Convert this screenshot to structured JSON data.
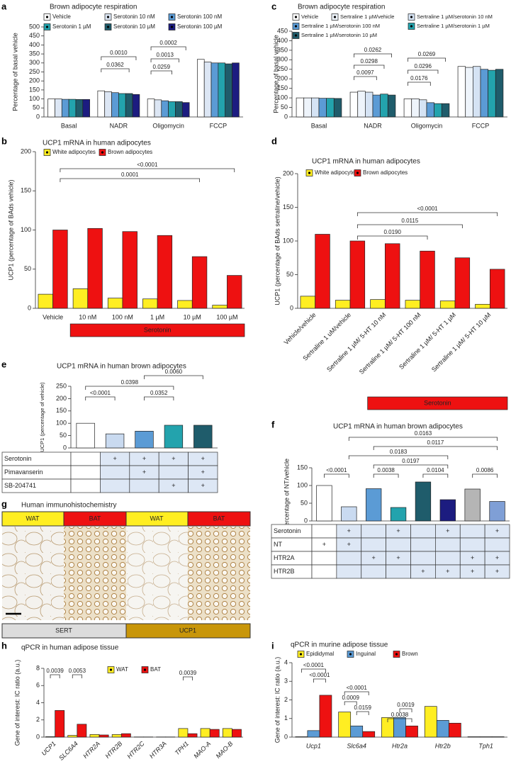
{
  "chart_data": [
    {
      "panel": "a",
      "type": "bar",
      "title": "Brown adipocyte respiration",
      "y_label": "Percentage of basal vehicle",
      "categories": [
        "Basal",
        "NADR",
        "Oligomycin",
        "FCCP"
      ],
      "series": [
        {
          "name": "Vehicle",
          "color": "#ffffff",
          "values": [
            100,
            145,
            100,
            320
          ]
        },
        {
          "name": "Serotonin 10 nM",
          "color": "#dce6f4",
          "values": [
            100,
            140,
            95,
            305
          ]
        },
        {
          "name": "Serotonin 100 nM",
          "color": "#5b9bd5",
          "values": [
            98,
            135,
            90,
            300
          ]
        },
        {
          "name": "Serotonin 1 µM",
          "color": "#23a3ad",
          "values": [
            98,
            130,
            85,
            300
          ]
        },
        {
          "name": "Serotonin 10 µM",
          "color": "#1f5c6b",
          "values": [
            97,
            130,
            85,
            295
          ]
        },
        {
          "name": "Serotonin 100 µM",
          "color": "#1c1c80",
          "values": [
            97,
            125,
            80,
            300
          ]
        }
      ],
      "ylim": [
        0,
        500
      ],
      "yticks": [
        0,
        50,
        100,
        150,
        200,
        250,
        300,
        350,
        400,
        450,
        500
      ],
      "annotations": [
        "0.0010",
        "0.0362",
        "0.0002",
        "0.0013",
        "0.0259"
      ]
    },
    {
      "panel": "c",
      "type": "bar",
      "title": "Brown adipocyte respiration",
      "y_label": "Percentage of basal vehicle",
      "categories": [
        "Basal",
        "NADR",
        "Oligomycin",
        "FCCP"
      ],
      "series": [
        {
          "name": "Vehicle",
          "color": "#ffffff",
          "values": [
            100,
            130,
            95,
            265
          ]
        },
        {
          "name": "Sertraline 1 µM/vehicle",
          "color": "#eef4fb",
          "values": [
            100,
            135,
            95,
            260
          ]
        },
        {
          "name": "Sertraline 1 µM/serotonin 10 nM",
          "color": "#d5e3f4",
          "values": [
            100,
            130,
            90,
            265
          ]
        },
        {
          "name": "Sertraline 1 µM/serotonin 100 nM",
          "color": "#5b9bd5",
          "values": [
            98,
            115,
            75,
            250
          ]
        },
        {
          "name": "Sertraline 1 µM/serotonin 1 µM",
          "color": "#23a3ad",
          "values": [
            98,
            120,
            70,
            245
          ]
        },
        {
          "name": "Sertraline 1 µM/serotonin 10 µM",
          "color": "#1f5c6b",
          "values": [
            97,
            115,
            70,
            250
          ]
        }
      ],
      "ylim": [
        0,
        450
      ],
      "yticks": [
        0,
        50,
        100,
        150,
        200,
        250,
        300,
        350,
        400,
        450
      ],
      "annotations": [
        "0.0262",
        "0.0298",
        "0.0097",
        "0.0269",
        "0.0296",
        "0.0176"
      ]
    },
    {
      "panel": "b",
      "type": "bar",
      "title": "UCP1 mRNA in human adipocytes",
      "y_label": "UCP1 (percentage of BAds vehicle)",
      "categories": [
        "Vehicle",
        "10 nM",
        "100 nM",
        "1 µM",
        "10 µM",
        "100 µM"
      ],
      "series": [
        {
          "name": "White adipocytes",
          "color": "#ffee22",
          "values": [
            18,
            25,
            13,
            12,
            10,
            4
          ]
        },
        {
          "name": "Brown adipocytes",
          "color": "#ee1111",
          "values": [
            100,
            102,
            98,
            93,
            66,
            42
          ]
        }
      ],
      "ylim": [
        0,
        200
      ],
      "yticks": [
        0,
        50,
        100,
        150,
        200
      ],
      "annotations": [
        "0.0001",
        "<0.0001"
      ],
      "banner": "Serotonin"
    },
    {
      "panel": "d",
      "type": "bar",
      "title": "UCP1 mRNA in human adipocytes",
      "y_label": "UCP1 (percentage of BAds sertraline/vehicle)",
      "categories": [
        "Vehicle/vehicle",
        "Sertraline 1 uM/vehicle",
        "Sertraline 1 µM/ 5-HT 10 nM",
        "Sertraline 1 µM/ 5-HT 100 nM",
        "Sertraline 1 µM/ 5-HT 1 µM",
        "Sertraline 1 µM/ 5-HT 10 µM"
      ],
      "series": [
        {
          "name": "White adipocytes",
          "color": "#ffee22",
          "values": [
            18,
            12,
            13,
            12,
            11,
            6
          ]
        },
        {
          "name": "Brown adipocytes",
          "color": "#ee1111",
          "values": [
            110,
            100,
            96,
            85,
            75,
            58
          ]
        }
      ],
      "ylim": [
        0,
        200
      ],
      "yticks": [
        0,
        50,
        100,
        150,
        200
      ],
      "annotations": [
        "<0.0001",
        "0.0115",
        "0.0190"
      ],
      "banner": "Serotonin"
    },
    {
      "panel": "e",
      "type": "bar",
      "title": "UCP1 mRNA in human brown adipocytes",
      "y_label": "UCP1 (percentage of vehicle)",
      "values": [
        100,
        57,
        68,
        92,
        92
      ],
      "colors": [
        "#ffffff",
        "#c9daf0",
        "#5b9bd5",
        "#23a3ad",
        "#1f5c6b"
      ],
      "ylim": [
        0,
        250
      ],
      "yticks": [
        0,
        50,
        100,
        150,
        200,
        250
      ],
      "annotations": [
        "<0.0001",
        "0.0398",
        "0.0060",
        "0.0352"
      ],
      "table": {
        "rows": [
          {
            "label": "Serotonin",
            "cells": [
              null,
              "+",
              "+",
              "+",
              "+"
            ]
          },
          {
            "label": "Pimavanserin",
            "cells": [
              null,
              null,
              "+",
              null,
              "+"
            ]
          },
          {
            "label": "SB-204741",
            "cells": [
              null,
              null,
              null,
              "+",
              "+"
            ]
          }
        ]
      }
    },
    {
      "panel": "f",
      "type": "bar",
      "title": "UCP1 mRNA in human brown adipocytes",
      "y_label": "Percentage of NT/vehicle",
      "values": [
        100,
        40,
        91,
        38,
        110,
        60,
        90,
        55
      ],
      "colors": [
        "#ffffff",
        "#c9daf0",
        "#5b9bd5",
        "#23a3ad",
        "#1f5c6b",
        "#1c1c80",
        "#b5b5b5",
        "#7f9fd6"
      ],
      "ylim": [
        0,
        150
      ],
      "yticks": [
        0,
        50,
        100,
        150
      ],
      "annotations": [
        "<0.0001",
        "0.0038",
        "0.0104",
        "0.0086",
        "0.0197",
        "0.0183",
        "0.0117",
        "0.0163"
      ],
      "table": {
        "rows": [
          {
            "label": "Serotonin",
            "cells": [
              null,
              "+",
              null,
              "+",
              null,
              "+",
              null,
              "+"
            ]
          },
          {
            "label": "NT",
            "cells": [
              "+",
              "+",
              null,
              null,
              null,
              null,
              null,
              null
            ]
          },
          {
            "label": "HTR2A",
            "cells": [
              null,
              null,
              "+",
              "+",
              null,
              null,
              "+",
              "+"
            ]
          },
          {
            "label": "HTR2B",
            "cells": [
              null,
              null,
              null,
              null,
              "+",
              "+",
              "+",
              "+"
            ]
          }
        ]
      }
    },
    {
      "panel": "h",
      "type": "bar",
      "title": "qPCR in human adipose tissue",
      "y_label": "Gene of interest: IC ratio (a.u.)",
      "categories": [
        "UCP1",
        "SLC6A4",
        "HTR2A",
        "HTR2B",
        "HTR2C",
        "HTR3A",
        "TPH1",
        "MAO-A",
        "MAO-B"
      ],
      "series": [
        {
          "name": "WAT",
          "color": "#ffee22",
          "values": [
            0.05,
            0.2,
            0.3,
            0.3,
            0.02,
            0.02,
            1.0,
            1.0,
            1.0
          ]
        },
        {
          "name": "BAT",
          "color": "#ee1111",
          "values": [
            3.1,
            1.5,
            0.25,
            0.4,
            0.02,
            0.02,
            0.4,
            0.9,
            0.9
          ]
        }
      ],
      "ylim": [
        0,
        8
      ],
      "yticks": [
        0,
        2,
        4,
        6,
        8
      ],
      "annotations": [
        "0.0039",
        "0.0053",
        "0.0039"
      ]
    },
    {
      "panel": "i",
      "type": "bar",
      "title": "qPCR in murine adipose tissue",
      "y_label": "Gene of interest: IC ratio (a.u.)",
      "categories": [
        "Ucp1",
        "Slc6a4",
        "Htr2a",
        "Htr2b",
        "Tph1"
      ],
      "series": [
        {
          "name": "Epididymal",
          "color": "#ffee22",
          "values": [
            0.02,
            1.35,
            1.05,
            1.65,
            0.02
          ]
        },
        {
          "name": "Inguinal",
          "color": "#5b9bd5",
          "values": [
            0.35,
            0.6,
            1.05,
            0.9,
            0.02
          ]
        },
        {
          "name": "Brown",
          "color": "#ee1111",
          "values": [
            2.25,
            0.3,
            0.6,
            0.75,
            0.02
          ]
        }
      ],
      "ylim": [
        0,
        4
      ],
      "yticks": [
        0,
        1,
        2,
        3,
        4
      ],
      "annotations": [
        "<0.0001",
        "<0.0001",
        "0.0009",
        "<0.0001",
        "0.0159",
        "0.0038",
        "0.0019"
      ]
    }
  ],
  "panel_g": {
    "panel": "g",
    "title": "Human immunohistochemistry",
    "tissues": [
      "WAT",
      "BAT",
      "WAT",
      "BAT"
    ],
    "stains": [
      "SERT",
      "UCP1"
    ]
  }
}
